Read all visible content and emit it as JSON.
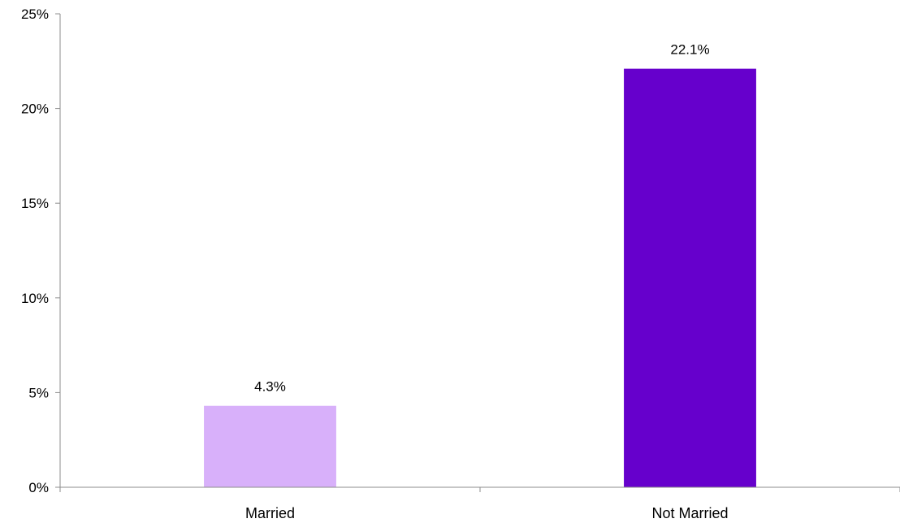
{
  "chart_data": {
    "type": "bar",
    "title": "",
    "xlabel": "",
    "ylabel": "",
    "categories": [
      "Married",
      "Not Married"
    ],
    "values": [
      4.3,
      22.1
    ],
    "value_labels": [
      "4.3%",
      "22.1%"
    ],
    "colors": [
      "#d8b0fa",
      "#6600cc"
    ],
    "ylim": [
      0,
      25
    ],
    "yticks": [
      0,
      5,
      10,
      15,
      20,
      25
    ],
    "ytick_labels": [
      "0%",
      "5%",
      "10%",
      "15%",
      "20%",
      "25%"
    ],
    "grid": false,
    "legend": "none"
  }
}
